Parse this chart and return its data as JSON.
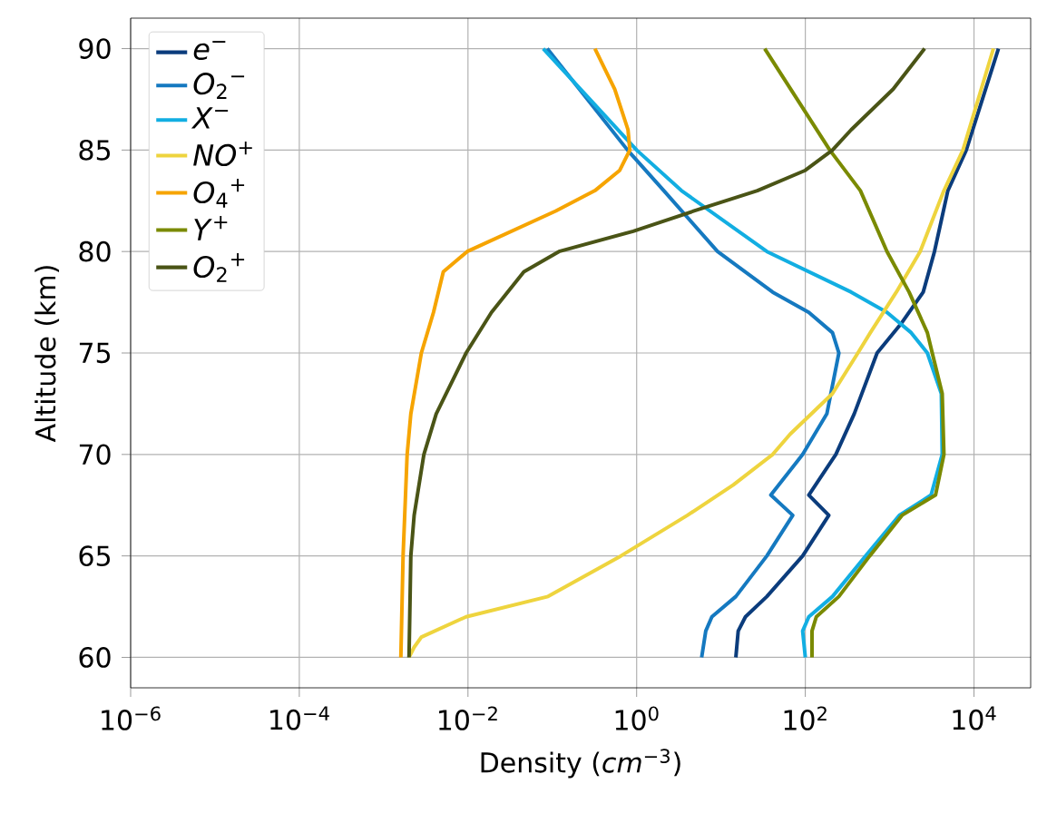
{
  "chart_data": {
    "type": "line",
    "xlabel": "Density (*cm*$^{−3}$)",
    "ylabel": "Altitude (km)",
    "log": "x",
    "grid": true,
    "legend": "top left",
    "xlim": [
      1e-06,
      47000
    ],
    "ylim": [
      58.5,
      91.5
    ],
    "xticks": [
      {
        "value": 1e-06,
        "label": "10$^{−6}$"
      },
      {
        "value": 0.0001,
        "label": "10$^{−4}$"
      },
      {
        "value": 0.01,
        "label": "10$^{−2}$"
      },
      {
        "value": 1,
        "label": "10$^{0}$"
      },
      {
        "value": 100,
        "label": "10$^{2}$"
      },
      {
        "value": 10000,
        "label": "10$^{4}$"
      }
    ],
    "yticks": [
      60,
      65,
      70,
      75,
      80,
      85,
      90
    ],
    "series": [
      {
        "name": "*e*$^{−}$",
        "color": "#0b3c7c",
        "x": [
          19500,
          8100,
          4900,
          3400,
          2500,
          1400,
          710,
          380,
          230,
          110,
          190,
          93,
          35,
          19.5,
          16,
          15
        ],
        "values": [
          90,
          85,
          83,
          80,
          78,
          76.5,
          75,
          72,
          70,
          68,
          67,
          65,
          63,
          62,
          61.3,
          60
        ]
      },
      {
        "name": "*O*$_{2}$$^{−}$",
        "color": "#1579c0",
        "x": [
          0.087,
          0.78,
          2.1,
          9.1,
          41,
          110,
          210,
          250,
          180,
          93,
          39,
          71,
          35,
          15,
          7.8,
          6.6,
          5.9
        ],
        "values": [
          90,
          85,
          83,
          80,
          78,
          77,
          76,
          75,
          72,
          70,
          68,
          67,
          65,
          63,
          62,
          61.3,
          60
        ]
      },
      {
        "name": "*X*$^{−}$",
        "color": "#12aee2",
        "x": [
          0.078,
          1.0,
          3.4,
          35,
          350,
          930,
          1800,
          2800,
          4100,
          4200,
          3100,
          1300,
          520,
          210,
          110,
          93,
          100
        ],
        "values": [
          90,
          85,
          83,
          80,
          78,
          77,
          76,
          75,
          73,
          70,
          68,
          67,
          65,
          63,
          62,
          61.3,
          60
        ]
      },
      {
        "name": "*NO*$^{+}$",
        "color": "#eed43e",
        "x": [
          17000,
          7400,
          4400,
          2300,
          1200,
          590,
          420,
          210,
          66,
          41,
          14,
          4.0,
          0.65,
          0.089,
          0.0095,
          0.0028,
          0.0023,
          0.002
        ],
        "values": [
          90,
          85,
          83,
          80,
          78,
          76,
          75,
          73,
          71,
          70,
          68.5,
          67,
          65,
          63,
          62,
          61,
          60.5,
          60
        ]
      },
      {
        "name": "*O*$_{4}$$^{+}$",
        "color": "#f6a400",
        "x": [
          0.32,
          0.55,
          0.79,
          0.83,
          0.63,
          0.32,
          0.11,
          0.0098,
          0.0051,
          0.0039,
          0.0028,
          0.0021,
          0.0019,
          0.0017,
          0.0016
        ],
        "values": [
          90,
          88,
          86,
          85,
          84,
          83,
          82,
          80,
          79,
          77,
          75,
          72,
          70,
          65,
          60
        ]
      },
      {
        "name": "*Y*$^{+}$",
        "color": "#7a8a00",
        "x": [
          33,
          195,
          450,
          930,
          1700,
          2800,
          3200,
          4200,
          4400,
          3500,
          1400,
          580,
          250,
          135,
          120,
          120
        ],
        "values": [
          90,
          85,
          83,
          80,
          78,
          76,
          75,
          73,
          70,
          68,
          67,
          65,
          63,
          62,
          61.3,
          60
        ]
      },
      {
        "name": "*O*$_{2}$$^{+}$",
        "color": "#4a5416",
        "x": [
          2600,
          1100,
          350,
          210,
          100,
          27,
          4.8,
          0.91,
          0.12,
          0.046,
          0.019,
          0.0095,
          0.0042,
          0.003,
          0.0023,
          0.0021,
          0.002
        ],
        "values": [
          90,
          88,
          86,
          85,
          84,
          83,
          82,
          81,
          80,
          79,
          77,
          75,
          72,
          70,
          67,
          65,
          60
        ]
      }
    ]
  }
}
